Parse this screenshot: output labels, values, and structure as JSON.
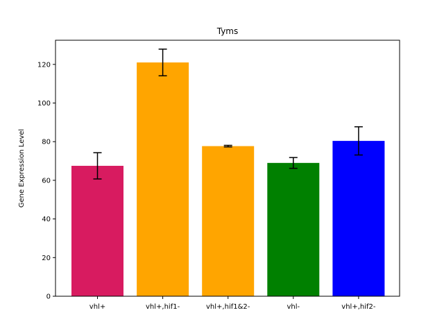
{
  "chart_data": {
    "type": "bar",
    "title": "Tyms",
    "xlabel": "",
    "ylabel": "Gene Expression Level",
    "ylim": [
      0,
      132.5
    ],
    "yticks": [
      0,
      20,
      40,
      60,
      80,
      100,
      120
    ],
    "grid": false,
    "legend": "none",
    "categories": [
      "vhl+",
      "vhl+,hif1-",
      "vhl+,hif1&2-",
      "vhl-",
      "vhl+,hif2-"
    ],
    "values": [
      67.5,
      121.0,
      77.7,
      69.0,
      80.4
    ],
    "errors": [
      6.8,
      6.9,
      0.4,
      2.8,
      7.3
    ],
    "colors": [
      "#d81b60",
      "#ffa500",
      "#ffa500",
      "#008000",
      "#0000ff"
    ]
  }
}
